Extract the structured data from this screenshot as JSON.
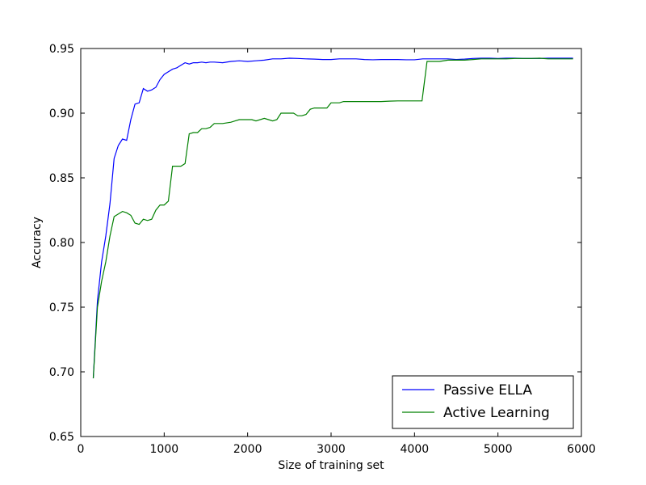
{
  "chart_data": {
    "type": "line",
    "title": "",
    "xlabel": "Size of training set",
    "ylabel": "Accuracy",
    "xlim": [
      0,
      6000
    ],
    "ylim": [
      0.65,
      0.95
    ],
    "xticks": [
      0,
      1000,
      2000,
      3000,
      4000,
      5000,
      6000
    ],
    "xtick_labels": [
      "0",
      "1000",
      "2000",
      "3000",
      "4000",
      "5000",
      "6000"
    ],
    "yticks": [
      0.65,
      0.7,
      0.75,
      0.8,
      0.85,
      0.9,
      0.95
    ],
    "ytick_labels": [
      "0.65",
      "0.70",
      "0.75",
      "0.80",
      "0.85",
      "0.90",
      "0.95"
    ],
    "grid": false,
    "legend_position": "lower-right",
    "series": [
      {
        "name": "Passive ELLA",
        "color": "#0000ff",
        "points": [
          [
            150,
            0.695
          ],
          [
            200,
            0.755
          ],
          [
            250,
            0.785
          ],
          [
            300,
            0.805
          ],
          [
            350,
            0.83
          ],
          [
            400,
            0.865
          ],
          [
            450,
            0.875
          ],
          [
            500,
            0.88
          ],
          [
            550,
            0.879
          ],
          [
            600,
            0.895
          ],
          [
            650,
            0.907
          ],
          [
            700,
            0.908
          ],
          [
            750,
            0.919
          ],
          [
            800,
            0.917
          ],
          [
            850,
            0.918
          ],
          [
            900,
            0.92
          ],
          [
            950,
            0.926
          ],
          [
            1000,
            0.93
          ],
          [
            1050,
            0.932
          ],
          [
            1100,
            0.934
          ],
          [
            1150,
            0.935
          ],
          [
            1200,
            0.937
          ],
          [
            1250,
            0.939
          ],
          [
            1300,
            0.938
          ],
          [
            1350,
            0.939
          ],
          [
            1400,
            0.939
          ],
          [
            1450,
            0.9395
          ],
          [
            1500,
            0.939
          ],
          [
            1550,
            0.9395
          ],
          [
            1600,
            0.9395
          ],
          [
            1700,
            0.939
          ],
          [
            1800,
            0.94
          ],
          [
            1900,
            0.9405
          ],
          [
            2000,
            0.94
          ],
          [
            2100,
            0.9405
          ],
          [
            2200,
            0.941
          ],
          [
            2300,
            0.942
          ],
          [
            2400,
            0.942
          ],
          [
            2500,
            0.9425
          ],
          [
            2600,
            0.9423
          ],
          [
            2700,
            0.942
          ],
          [
            2800,
            0.9418
          ],
          [
            2900,
            0.9415
          ],
          [
            3000,
            0.9415
          ],
          [
            3100,
            0.942
          ],
          [
            3200,
            0.942
          ],
          [
            3300,
            0.942
          ],
          [
            3400,
            0.9415
          ],
          [
            3500,
            0.9413
          ],
          [
            3600,
            0.9415
          ],
          [
            3700,
            0.9415
          ],
          [
            3800,
            0.9415
          ],
          [
            3900,
            0.9413
          ],
          [
            4000,
            0.9413
          ],
          [
            4100,
            0.942
          ],
          [
            4200,
            0.942
          ],
          [
            4300,
            0.942
          ],
          [
            4400,
            0.942
          ],
          [
            4500,
            0.9415
          ],
          [
            4600,
            0.9418
          ],
          [
            4700,
            0.9423
          ],
          [
            4800,
            0.9425
          ],
          [
            4900,
            0.9425
          ],
          [
            5000,
            0.9423
          ],
          [
            5100,
            0.9425
          ],
          [
            5200,
            0.9425
          ],
          [
            5300,
            0.9423
          ],
          [
            5400,
            0.9423
          ],
          [
            5500,
            0.9423
          ],
          [
            5600,
            0.9425
          ],
          [
            5700,
            0.9425
          ],
          [
            5800,
            0.9425
          ],
          [
            5900,
            0.9425
          ]
        ]
      },
      {
        "name": "Active Learning",
        "color": "#008000",
        "points": [
          [
            150,
            0.695
          ],
          [
            200,
            0.75
          ],
          [
            250,
            0.77
          ],
          [
            300,
            0.785
          ],
          [
            350,
            0.805
          ],
          [
            400,
            0.82
          ],
          [
            450,
            0.822
          ],
          [
            500,
            0.824
          ],
          [
            550,
            0.823
          ],
          [
            600,
            0.821
          ],
          [
            650,
            0.815
          ],
          [
            700,
            0.814
          ],
          [
            750,
            0.818
          ],
          [
            800,
            0.817
          ],
          [
            850,
            0.818
          ],
          [
            900,
            0.825
          ],
          [
            950,
            0.829
          ],
          [
            1000,
            0.829
          ],
          [
            1050,
            0.832
          ],
          [
            1100,
            0.859
          ],
          [
            1150,
            0.859
          ],
          [
            1200,
            0.859
          ],
          [
            1250,
            0.861
          ],
          [
            1300,
            0.884
          ],
          [
            1350,
            0.885
          ],
          [
            1400,
            0.885
          ],
          [
            1450,
            0.888
          ],
          [
            1500,
            0.888
          ],
          [
            1550,
            0.889
          ],
          [
            1600,
            0.892
          ],
          [
            1700,
            0.892
          ],
          [
            1800,
            0.893
          ],
          [
            1850,
            0.894
          ],
          [
            1900,
            0.895
          ],
          [
            2000,
            0.895
          ],
          [
            2050,
            0.895
          ],
          [
            2100,
            0.894
          ],
          [
            2200,
            0.896
          ],
          [
            2250,
            0.895
          ],
          [
            2300,
            0.894
          ],
          [
            2350,
            0.895
          ],
          [
            2400,
            0.9
          ],
          [
            2450,
            0.9
          ],
          [
            2500,
            0.9
          ],
          [
            2550,
            0.9
          ],
          [
            2600,
            0.898
          ],
          [
            2650,
            0.898
          ],
          [
            2700,
            0.899
          ],
          [
            2750,
            0.903
          ],
          [
            2800,
            0.904
          ],
          [
            2900,
            0.904
          ],
          [
            2950,
            0.904
          ],
          [
            3000,
            0.908
          ],
          [
            3050,
            0.908
          ],
          [
            3100,
            0.908
          ],
          [
            3150,
            0.909
          ],
          [
            3200,
            0.909
          ],
          [
            3300,
            0.909
          ],
          [
            3400,
            0.909
          ],
          [
            3500,
            0.909
          ],
          [
            3600,
            0.909
          ],
          [
            3700,
            0.9093
          ],
          [
            3800,
            0.9095
          ],
          [
            3900,
            0.9095
          ],
          [
            4000,
            0.9095
          ],
          [
            4090,
            0.9095
          ],
          [
            4150,
            0.94
          ],
          [
            4200,
            0.94
          ],
          [
            4300,
            0.94
          ],
          [
            4400,
            0.941
          ],
          [
            4500,
            0.941
          ],
          [
            4600,
            0.941
          ],
          [
            4700,
            0.9415
          ],
          [
            4800,
            0.942
          ],
          [
            4900,
            0.942
          ],
          [
            5000,
            0.942
          ],
          [
            5100,
            0.942
          ],
          [
            5200,
            0.9423
          ],
          [
            5300,
            0.9423
          ],
          [
            5400,
            0.9423
          ],
          [
            5500,
            0.9425
          ],
          [
            5600,
            0.942
          ],
          [
            5700,
            0.942
          ],
          [
            5800,
            0.942
          ],
          [
            5900,
            0.942
          ]
        ]
      }
    ]
  }
}
